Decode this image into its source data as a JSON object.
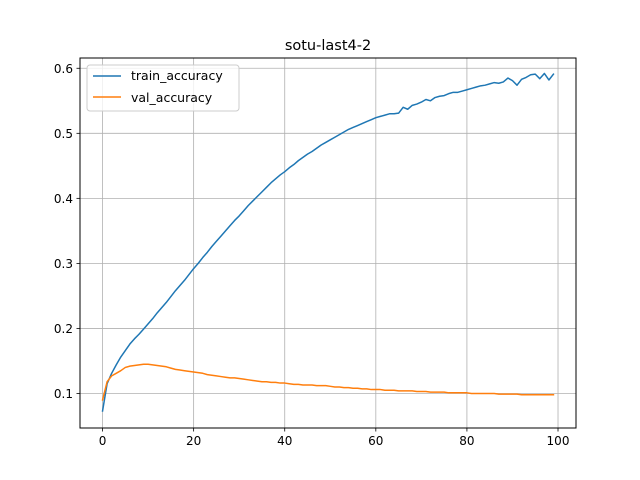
{
  "chart_data": {
    "type": "line",
    "title": "sotu-last4-2",
    "xlabel": "",
    "ylabel": "",
    "xlim": [
      -4.95,
      103.95
    ],
    "ylim": [
      0.0469,
      0.6158
    ],
    "xticks": [
      0,
      20,
      40,
      60,
      80,
      100
    ],
    "yticks": [
      0.1,
      0.2,
      0.3,
      0.4,
      0.5,
      0.6
    ],
    "ytick_labels": [
      "0.1",
      "0.2",
      "0.3",
      "0.4",
      "0.5",
      "0.6"
    ],
    "grid": true,
    "legend_position": "top-left",
    "x": [
      0,
      1,
      2,
      3,
      4,
      5,
      6,
      7,
      8,
      9,
      10,
      11,
      12,
      13,
      14,
      15,
      16,
      17,
      18,
      19,
      20,
      21,
      22,
      23,
      24,
      25,
      26,
      27,
      28,
      29,
      30,
      31,
      32,
      33,
      34,
      35,
      36,
      37,
      38,
      39,
      40,
      41,
      42,
      43,
      44,
      45,
      46,
      47,
      48,
      49,
      50,
      51,
      52,
      53,
      54,
      55,
      56,
      57,
      58,
      59,
      60,
      61,
      62,
      63,
      64,
      65,
      66,
      67,
      68,
      69,
      70,
      71,
      72,
      73,
      74,
      75,
      76,
      77,
      78,
      79,
      80,
      81,
      82,
      83,
      84,
      85,
      86,
      87,
      88,
      89,
      90,
      91,
      92,
      93,
      94,
      95,
      96,
      97,
      98,
      99
    ],
    "series": [
      {
        "name": "train_accuracy",
        "color": "#1f77b4",
        "values": [
          0.073,
          0.115,
          0.131,
          0.144,
          0.156,
          0.166,
          0.176,
          0.184,
          0.191,
          0.199,
          0.207,
          0.215,
          0.224,
          0.232,
          0.24,
          0.249,
          0.258,
          0.266,
          0.274,
          0.283,
          0.292,
          0.3,
          0.309,
          0.317,
          0.326,
          0.334,
          0.342,
          0.35,
          0.358,
          0.366,
          0.373,
          0.381,
          0.389,
          0.396,
          0.403,
          0.41,
          0.417,
          0.424,
          0.43,
          0.436,
          0.441,
          0.447,
          0.452,
          0.458,
          0.463,
          0.468,
          0.472,
          0.477,
          0.482,
          0.486,
          0.49,
          0.494,
          0.498,
          0.502,
          0.506,
          0.509,
          0.512,
          0.515,
          0.518,
          0.521,
          0.524,
          0.526,
          0.528,
          0.53,
          0.53,
          0.531,
          0.54,
          0.537,
          0.543,
          0.545,
          0.548,
          0.552,
          0.55,
          0.555,
          0.557,
          0.558,
          0.561,
          0.563,
          0.563,
          0.565,
          0.567,
          0.569,
          0.571,
          0.573,
          0.574,
          0.576,
          0.578,
          0.577,
          0.579,
          0.585,
          0.581,
          0.574,
          0.583,
          0.586,
          0.59,
          0.591,
          0.584,
          0.592,
          0.582,
          0.591
        ]
      },
      {
        "name": "val_accuracy",
        "color": "#ff7f0e",
        "values": [
          0.09,
          0.118,
          0.127,
          0.131,
          0.135,
          0.14,
          0.142,
          0.143,
          0.144,
          0.145,
          0.145,
          0.144,
          0.143,
          0.142,
          0.141,
          0.139,
          0.137,
          0.136,
          0.135,
          0.134,
          0.133,
          0.132,
          0.131,
          0.129,
          0.128,
          0.127,
          0.126,
          0.125,
          0.124,
          0.124,
          0.123,
          0.122,
          0.121,
          0.12,
          0.119,
          0.118,
          0.118,
          0.117,
          0.117,
          0.116,
          0.116,
          0.115,
          0.114,
          0.114,
          0.113,
          0.113,
          0.113,
          0.112,
          0.112,
          0.112,
          0.111,
          0.11,
          0.11,
          0.109,
          0.109,
          0.108,
          0.108,
          0.107,
          0.107,
          0.106,
          0.106,
          0.106,
          0.105,
          0.105,
          0.105,
          0.104,
          0.104,
          0.104,
          0.104,
          0.103,
          0.103,
          0.103,
          0.102,
          0.102,
          0.102,
          0.102,
          0.101,
          0.101,
          0.101,
          0.101,
          0.101,
          0.1,
          0.1,
          0.1,
          0.1,
          0.1,
          0.1,
          0.099,
          0.099,
          0.099,
          0.099,
          0.099,
          0.098,
          0.098,
          0.098,
          0.098,
          0.098,
          0.098,
          0.098,
          0.098
        ]
      }
    ]
  }
}
